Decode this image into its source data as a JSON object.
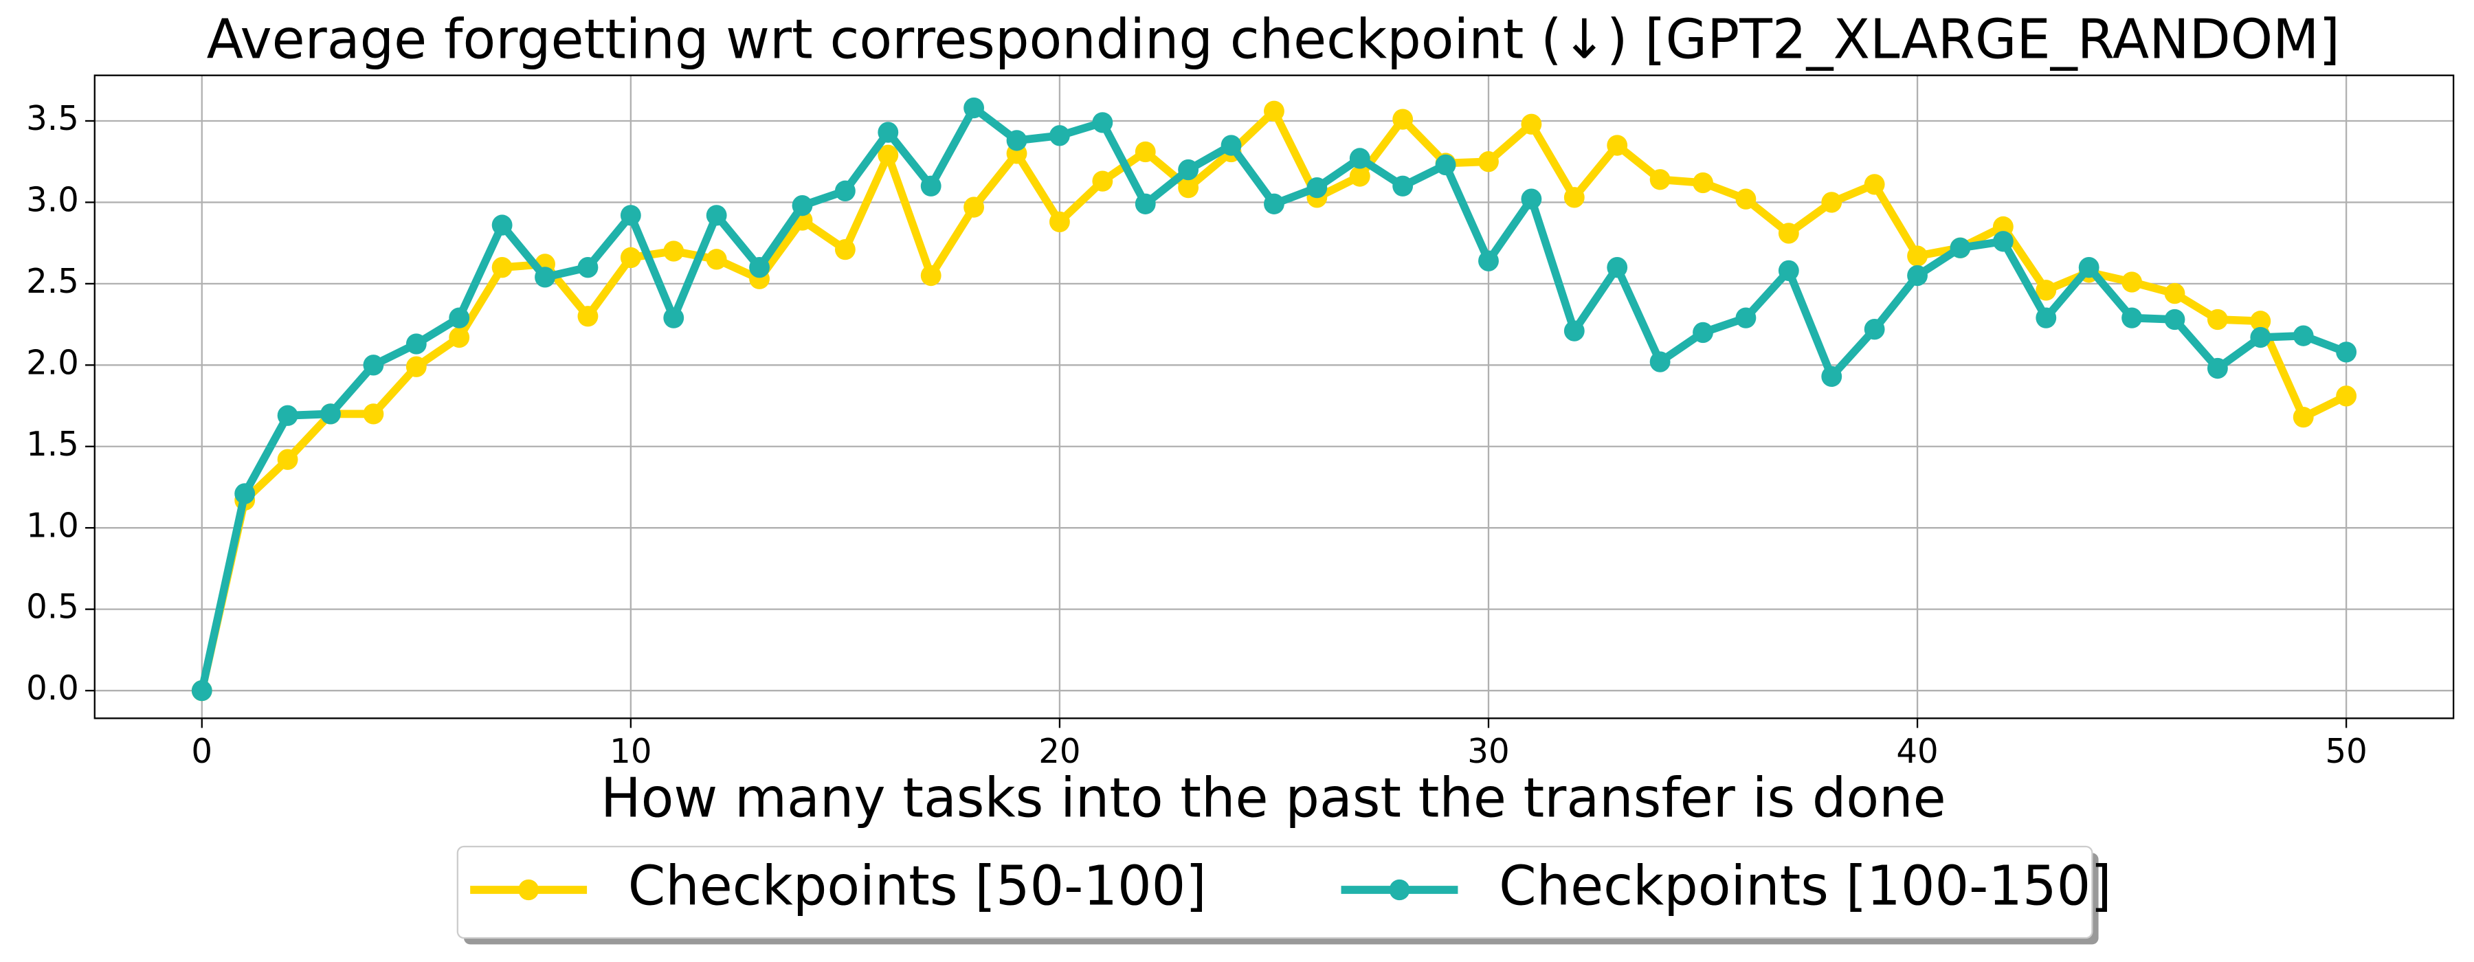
{
  "chart_data": {
    "type": "line",
    "title": "Average forgetting wrt corresponding checkpoint (↓) [GPT2_XLARGE_RANDOM]",
    "x_label": "How many tasks into the past the transfer is done",
    "x": [
      0,
      1,
      2,
      3,
      4,
      5,
      6,
      7,
      8,
      9,
      10,
      11,
      12,
      13,
      14,
      15,
      16,
      17,
      18,
      19,
      20,
      21,
      22,
      23,
      24,
      25,
      26,
      27,
      28,
      29,
      30,
      31,
      32,
      33,
      34,
      35,
      36,
      37,
      38,
      39,
      40,
      41,
      42,
      43,
      44,
      45,
      46,
      47,
      48,
      49,
      50
    ],
    "series": [
      {
        "name": "Checkpoints [50-100]",
        "color": "#ffd700",
        "values": [
          0,
          1.17,
          1.42,
          1.7,
          1.7,
          1.99,
          2.17,
          2.6,
          2.62,
          2.3,
          2.66,
          2.7,
          2.65,
          2.53,
          2.89,
          2.71,
          3.29,
          2.55,
          2.97,
          3.3,
          2.88,
          3.13,
          3.31,
          3.09,
          3.31,
          3.56,
          3.03,
          3.16,
          3.51,
          3.24,
          3.25,
          3.48,
          3.03,
          3.35,
          3.14,
          3.12,
          3.02,
          2.81,
          3.0,
          3.11,
          2.67,
          2.72,
          2.85,
          2.46,
          2.57,
          2.51,
          2.44,
          2.28,
          2.27,
          1.68,
          1.81
        ]
      },
      {
        "name": "Checkpoints [100-150]",
        "color": "#20b2aa",
        "values": [
          0,
          1.21,
          1.69,
          1.7,
          2.0,
          2.13,
          2.29,
          2.86,
          2.54,
          2.6,
          2.92,
          2.29,
          2.92,
          2.6,
          2.98,
          3.07,
          3.43,
          3.1,
          3.58,
          3.38,
          3.41,
          3.49,
          2.99,
          3.2,
          3.35,
          2.99,
          3.09,
          3.27,
          3.1,
          3.23,
          2.64,
          3.02,
          2.21,
          2.6,
          2.02,
          2.2,
          2.29,
          2.58,
          1.93,
          2.22,
          2.55,
          2.72,
          2.76,
          2.29,
          2.6,
          2.29,
          2.28,
          1.98,
          2.17,
          2.18,
          2.08
        ]
      }
    ],
    "xlim": [
      -2.5,
      52.5
    ],
    "ylim": [
      -0.17,
      3.78
    ],
    "xticks": [
      0,
      10,
      20,
      30,
      40,
      50
    ],
    "yticks": [
      {
        "value": 0,
        "label": "0.0"
      },
      0.5,
      {
        "value": 1,
        "label": "1.0"
      },
      1.5,
      {
        "value": 2,
        "label": "2.0"
      },
      2.5,
      {
        "value": 3,
        "label": "3.0"
      },
      3.5
    ],
    "grid": true,
    "legend": "lower center"
  }
}
